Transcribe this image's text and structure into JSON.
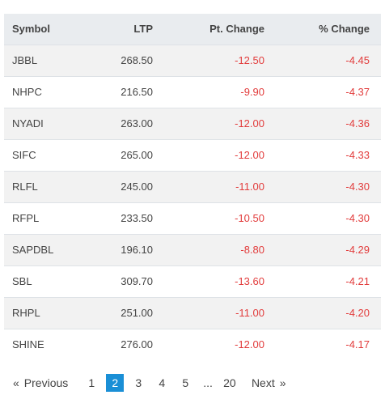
{
  "table": {
    "headers": [
      "Symbol",
      "LTP",
      "Pt. Change",
      "% Change"
    ],
    "rows": [
      {
        "symbol": "JBBL",
        "ltp": "268.50",
        "pt_change": "-12.50",
        "pct_change": "-4.45"
      },
      {
        "symbol": "NHPC",
        "ltp": "216.50",
        "pt_change": "-9.90",
        "pct_change": "-4.37"
      },
      {
        "symbol": "NYADI",
        "ltp": "263.00",
        "pt_change": "-12.00",
        "pct_change": "-4.36"
      },
      {
        "symbol": "SIFC",
        "ltp": "265.00",
        "pt_change": "-12.00",
        "pct_change": "-4.33"
      },
      {
        "symbol": "RLFL",
        "ltp": "245.00",
        "pt_change": "-11.00",
        "pct_change": "-4.30"
      },
      {
        "symbol": "RFPL",
        "ltp": "233.50",
        "pt_change": "-10.50",
        "pct_change": "-4.30"
      },
      {
        "symbol": "SAPDBL",
        "ltp": "196.10",
        "pt_change": "-8.80",
        "pct_change": "-4.29"
      },
      {
        "symbol": "SBL",
        "ltp": "309.70",
        "pt_change": "-13.60",
        "pct_change": "-4.21"
      },
      {
        "symbol": "RHPL",
        "ltp": "251.00",
        "pt_change": "-11.00",
        "pct_change": "-4.20"
      },
      {
        "symbol": "SHINE",
        "ltp": "276.00",
        "pt_change": "-12.00",
        "pct_change": "-4.17"
      }
    ]
  },
  "pagination": {
    "prev_chevron": "«",
    "prev_label": "Previous",
    "pages": [
      "1",
      "2",
      "3",
      "4",
      "5"
    ],
    "active_page": "2",
    "ellipsis": "...",
    "last_page": "20",
    "next_label": "Next",
    "next_chevron": "»"
  },
  "colors": {
    "negative": "#e23c3c",
    "accent": "#1a8fd6",
    "header_bg": "#e9ecef"
  }
}
